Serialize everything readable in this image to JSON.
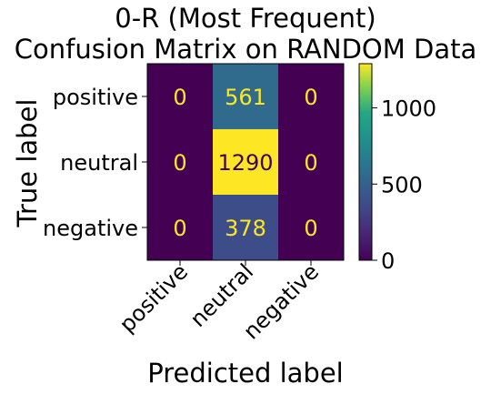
{
  "chart_data": {
    "type": "heatmap",
    "title": "0-R (Most Frequent)\nConfusion Matrix on RANDOM Data",
    "title_lines": [
      "0-R (Most Frequent)",
      "Confusion Matrix on RANDOM Data"
    ],
    "xlabel": "Predicted label",
    "ylabel": "True label",
    "x_categories": [
      "positive",
      "neutral",
      "negative"
    ],
    "y_categories": [
      "positive",
      "neutral",
      "negative"
    ],
    "values": [
      [
        0,
        561,
        0
      ],
      [
        0,
        1290,
        0
      ],
      [
        0,
        378,
        0
      ]
    ],
    "colormap": "viridis",
    "vmin": 0,
    "vmax": 1290,
    "colorbar_ticks": [
      0,
      500,
      1000
    ],
    "grid": false
  },
  "colors": {
    "text_on_dark": "#fde725",
    "text_on_light": "#440154"
  }
}
